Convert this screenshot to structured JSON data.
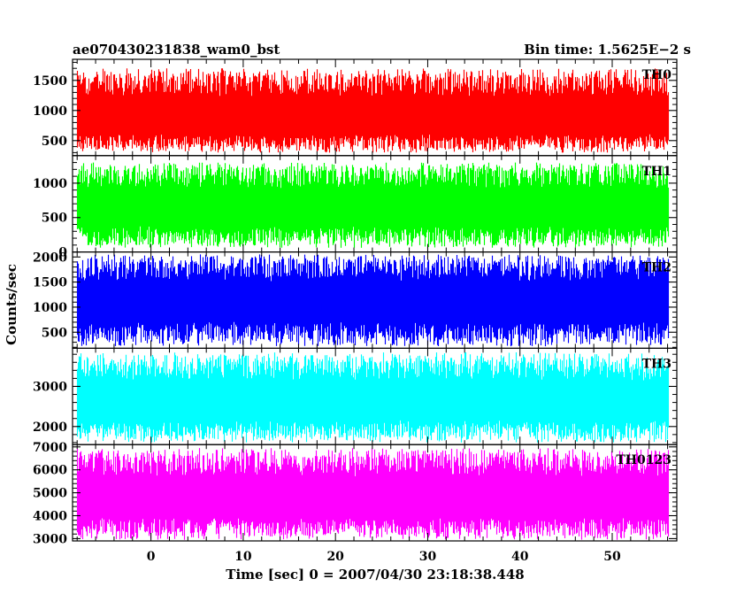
{
  "header": {
    "left_title": "ae070430231838_wam0_bst",
    "right_title": "Bin time: 1.5625E−2 s"
  },
  "chart_data": {
    "type": "line",
    "style": "stacked light-curve panels, dense noise-like series",
    "xlabel": "Time [sec] 0 = 2007/04/30 23:18:38.448",
    "ylabel": "Counts/sec",
    "xlim": [
      -8.5,
      57
    ],
    "x_ticks": [
      0,
      10,
      20,
      30,
      40,
      50
    ],
    "x_tick_labels": [
      "0",
      "10",
      "20",
      "30",
      "40",
      "50"
    ],
    "data_x_range": [
      -8,
      56
    ],
    "bin_time_s": 0.015625,
    "grid": false,
    "legend": "none; each panel carries its band label at top-right",
    "panels": [
      {
        "name": "TH0",
        "color": "#ff0000",
        "ylim": [
          250,
          1850
        ],
        "y_ticks": [
          500,
          1000,
          1500
        ],
        "y_tick_labels": [
          "500",
          "1000",
          "1500"
        ],
        "typical_range": [
          300,
          1700
        ],
        "mean": 850
      },
      {
        "name": "TH1",
        "color": "#00ff00",
        "ylim": [
          0,
          1400
        ],
        "y_ticks": [
          0,
          500,
          1000
        ],
        "y_tick_labels": [
          "0",
          "500",
          "1000"
        ],
        "typical_range": [
          60,
          1300
        ],
        "mean": 620
      },
      {
        "name": "TH2",
        "color": "#0000ff",
        "ylim": [
          180,
          2100
        ],
        "y_ticks": [
          500,
          1000,
          1500,
          2000
        ],
        "y_tick_labels": [
          "500",
          "1000",
          "1500",
          "2000"
        ],
        "typical_range": [
          220,
          2050
        ],
        "mean": 1100
      },
      {
        "name": "TH3",
        "color": "#00ffff",
        "ylim": [
          1550,
          3950
        ],
        "y_ticks": [
          2000,
          3000
        ],
        "y_tick_labels": [
          "2000",
          "3000"
        ],
        "typical_range": [
          1600,
          3850
        ],
        "mean": 2600
      },
      {
        "name": "TH0123",
        "color": "#ff00ff",
        "ylim": [
          2900,
          7100
        ],
        "y_ticks": [
          3000,
          4000,
          5000,
          6000,
          7000
        ],
        "y_tick_labels": [
          "3000",
          "4000",
          "5000",
          "6000",
          "7000"
        ],
        "typical_range": [
          2950,
          6950
        ],
        "mean": 4700
      }
    ]
  }
}
